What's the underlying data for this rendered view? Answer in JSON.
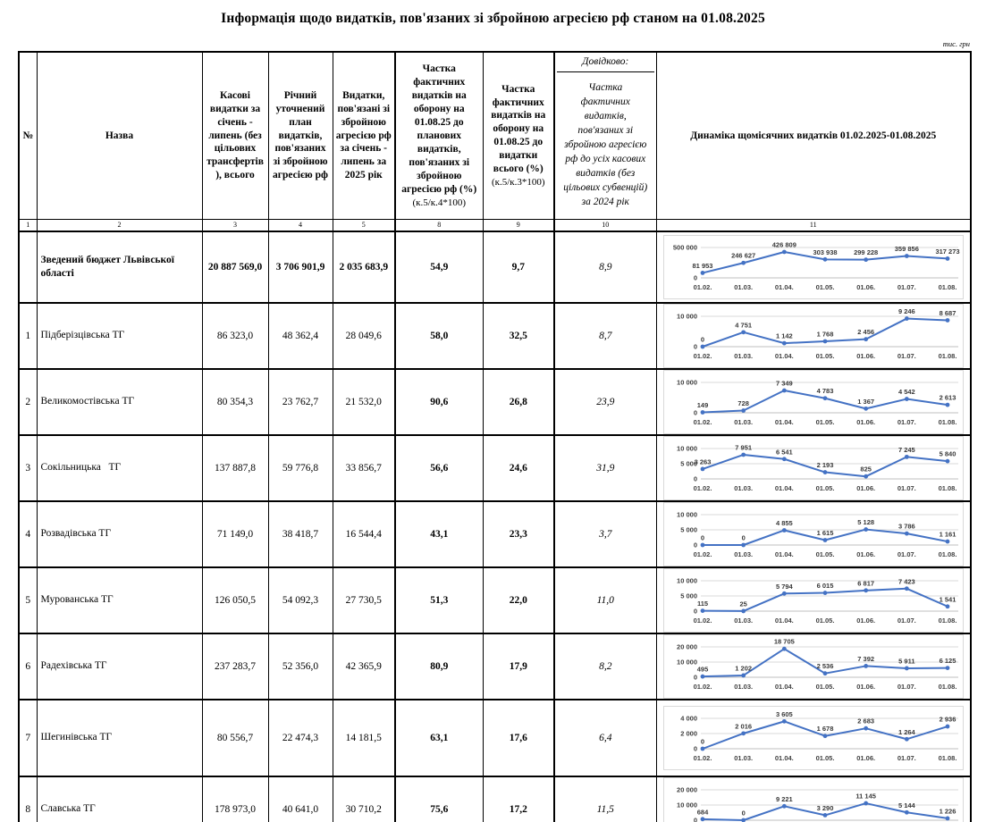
{
  "title": "Інформація щодо видатків, пов'язаних зі збройною агресією рф станом на 01.08.2025",
  "unit_note": "тис. грн",
  "table": {
    "headers": {
      "num": "№",
      "name": "Назва",
      "col3": "Касові видатки за січень - липень (без цільових трансфертів ), всього",
      "col4": "Річний уточнений план видатків, пов'язаних зі збройною агресією рф",
      "col5": "Видатки, пов'язані зі збройною агресією рф за січень - липень за 2025 рік",
      "col8_main": "Частка фактичних видатків на оборону на 01.08.25 до планових видатків, пов'язаних зі збройною агресією рф (%)",
      "col8_sub": "(к.5/к.4*100)",
      "col9_main": "Частка фактичних видатків на оборону на 01.08.25 до видатки всього (%)",
      "col9_sub": "(к.5/к.3*100)",
      "col10_top": "Довідково:",
      "col10_main": "Частка фактичних видатків, пов'язаних зі збройною агресією рф до усіх касових видатків (без цільових субвенцій) за 2024 рік",
      "col11": "Динаміка щомісячних видатків 01.02.2025-01.08.2025"
    },
    "col_numbers": [
      "1",
      "2",
      "3",
      "4",
      "5",
      "8",
      "9",
      "10",
      "11"
    ],
    "rows": [
      {
        "num": "",
        "name": "Зведений бюджет Львівської області",
        "cash": "20 887 569,0",
        "plan": "3 706 901,9",
        "war": "2 035 683,9",
        "share_plan": "54,9",
        "share_total": "9,7",
        "ref2024": "8,9"
      },
      {
        "num": "1",
        "name": "Підберізцівська ТГ",
        "cash": "86 323,0",
        "plan": "48 362,4",
        "war": "28 049,6",
        "share_plan": "58,0",
        "share_total": "32,5",
        "ref2024": "8,7"
      },
      {
        "num": "2",
        "name": "Великомостівська ТГ",
        "cash": "80 354,3",
        "plan": "23 762,7",
        "war": "21 532,0",
        "share_plan": "90,6",
        "share_total": "26,8",
        "ref2024": "23,9"
      },
      {
        "num": "3",
        "name": "Сокільницька   ТГ",
        "cash": "137 887,8",
        "plan": "59 776,8",
        "war": "33 856,7",
        "share_plan": "56,6",
        "share_total": "24,6",
        "ref2024": "31,9"
      },
      {
        "num": "4",
        "name": "Розвадівська ТГ",
        "cash": "71 149,0",
        "plan": "38 418,7",
        "war": "16 544,4",
        "share_plan": "43,1",
        "share_total": "23,3",
        "ref2024": "3,7"
      },
      {
        "num": "5",
        "name": "Мурованська ТГ",
        "cash": "126 050,5",
        "plan": "54 092,3",
        "war": "27 730,5",
        "share_plan": "51,3",
        "share_total": "22,0",
        "ref2024": "11,0"
      },
      {
        "num": "6",
        "name": "Радехівська ТГ",
        "cash": "237 283,7",
        "plan": "52 356,0",
        "war": "42 365,9",
        "share_plan": "80,9",
        "share_total": "17,9",
        "ref2024": "8,2"
      },
      {
        "num": "7",
        "name": "Шегинівська ТГ",
        "cash": "80 556,7",
        "plan": "22 474,3",
        "war": "14 181,5",
        "share_plan": "63,1",
        "share_total": "17,6",
        "ref2024": "6,4"
      },
      {
        "num": "8",
        "name": "Славська ТГ",
        "cash": "178 973,0",
        "plan": "40 641,0",
        "war": "30 710,2",
        "share_plan": "75,6",
        "share_total": "17,2",
        "ref2024": "11,5"
      }
    ]
  },
  "chart_data": {
    "type": "line",
    "categories": [
      "01.02.",
      "01.03.",
      "01.04.",
      "01.05.",
      "01.06.",
      "01.07.",
      "01.08."
    ],
    "line_color": "#4472c4",
    "series": [
      {
        "name": "Зведений бюджет Львівської області",
        "values": [
          81953,
          246627,
          426809,
          303938,
          299228,
          359856,
          317273
        ],
        "labels": [
          "81 953",
          "246 627",
          "426 809",
          "303 938",
          "299 228",
          "359 856",
          "317 273"
        ],
        "ylim": [
          0,
          500000
        ],
        "yticks": [
          {
            "v": 500000,
            "label": "500 000"
          },
          {
            "v": 0,
            "label": "0"
          }
        ]
      },
      {
        "name": "Підберізцівська ТГ",
        "values": [
          0,
          4751,
          1142,
          1768,
          2456,
          9246,
          8687
        ],
        "labels": [
          "0",
          "4 751",
          "1 142",
          "1 768",
          "2 456",
          "9 246",
          "8 687"
        ],
        "ylim": [
          0,
          10000
        ],
        "yticks": [
          {
            "v": 10000,
            "label": "10 000"
          },
          {
            "v": 0,
            "label": "0"
          }
        ]
      },
      {
        "name": "Великомостівська ТГ",
        "values": [
          149,
          728,
          7349,
          4783,
          1367,
          4542,
          2613
        ],
        "labels": [
          "149",
          "728",
          "7 349",
          "4 783",
          "1 367",
          "4 542",
          "2 613"
        ],
        "ylim": [
          0,
          10000
        ],
        "yticks": [
          {
            "v": 10000,
            "label": "10 000"
          },
          {
            "v": 0,
            "label": "0"
          }
        ]
      },
      {
        "name": "Сокільницька ТГ",
        "values": [
          3263,
          7951,
          6541,
          2193,
          825,
          7245,
          5840
        ],
        "labels": [
          "3 263",
          "7 951",
          "6 541",
          "2 193",
          "825",
          "7 245",
          "5 840"
        ],
        "ylim": [
          0,
          10000
        ],
        "yticks": [
          {
            "v": 10000,
            "label": "10 000"
          },
          {
            "v": 5000,
            "label": "5 000"
          },
          {
            "v": 0,
            "label": "0"
          }
        ]
      },
      {
        "name": "Розвадівська ТГ",
        "values": [
          0,
          0,
          4855,
          1615,
          5128,
          3786,
          1161
        ],
        "labels": [
          "0",
          "0",
          "4 855",
          "1 615",
          "5 128",
          "3 786",
          "1 161"
        ],
        "ylim": [
          0,
          10000
        ],
        "yticks": [
          {
            "v": 10000,
            "label": "10 000"
          },
          {
            "v": 5000,
            "label": "5 000"
          },
          {
            "v": 0,
            "label": "0"
          }
        ]
      },
      {
        "name": "Мурованська ТГ",
        "values": [
          115,
          25,
          5794,
          6015,
          6817,
          7423,
          1541
        ],
        "labels": [
          "115",
          "25",
          "5 794",
          "6 015",
          "6 817",
          "7 423",
          "1 541"
        ],
        "ylim": [
          0,
          10000
        ],
        "yticks": [
          {
            "v": 10000,
            "label": "10 000"
          },
          {
            "v": 5000,
            "label": "5 000"
          },
          {
            "v": 0,
            "label": "0"
          }
        ]
      },
      {
        "name": "Радехівська ТГ",
        "values": [
          495,
          1202,
          18705,
          2536,
          7392,
          5911,
          6125
        ],
        "labels": [
          "495",
          "1 202",
          "18 705",
          "2 536",
          "7 392",
          "5 911",
          "6 125"
        ],
        "ylim": [
          0,
          20000
        ],
        "yticks": [
          {
            "v": 20000,
            "label": "20 000"
          },
          {
            "v": 10000,
            "label": "10 000"
          },
          {
            "v": 0,
            "label": "0"
          }
        ]
      },
      {
        "name": "Шегинівська ТГ",
        "values": [
          0,
          2016,
          3605,
          1678,
          2683,
          1264,
          2936
        ],
        "labels": [
          "0",
          "2 016",
          "3 605",
          "1 678",
          "2 683",
          "1 264",
          "2 936"
        ],
        "ylim": [
          0,
          4000
        ],
        "yticks": [
          {
            "v": 4000,
            "label": "4 000"
          },
          {
            "v": 2000,
            "label": "2 000"
          },
          {
            "v": 0,
            "label": "0"
          }
        ]
      },
      {
        "name": "Славська ТГ",
        "values": [
          684,
          0,
          9221,
          3290,
          11145,
          5144,
          1226
        ],
        "labels": [
          "684",
          "0",
          "9 221",
          "3 290",
          "11 145",
          "5 144",
          "1 226"
        ],
        "ylim": [
          0,
          20000
        ],
        "yticks": [
          {
            "v": 20000,
            "label": "20 000"
          },
          {
            "v": 10000,
            "label": "10 000"
          },
          {
            "v": 0,
            "label": "0"
          }
        ]
      }
    ]
  }
}
